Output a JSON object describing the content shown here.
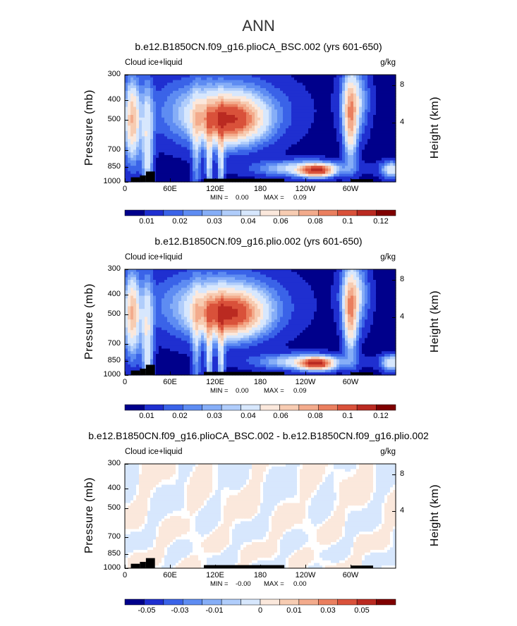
{
  "main_title": "ANN",
  "colors": {
    "levels_abs": [
      "#00008b",
      "#1f2fd0",
      "#3a63e8",
      "#5e8cf2",
      "#86aef7",
      "#b0cdfb",
      "#d7e7fd",
      "#fbe8dc",
      "#f7ccb2",
      "#f3ab8c",
      "#ea7f5f",
      "#d9513a",
      "#ba2a21",
      "#7f0000"
    ],
    "levels_diff": [
      "#00008b",
      "#1f2fd0",
      "#3a63e8",
      "#5e8cf2",
      "#86aef7",
      "#b0cdfb",
      "#d7e7fd",
      "#fbe8dc",
      "#f7ccb2",
      "#f3ab8c",
      "#ea7f5f",
      "#d9513a",
      "#ba2a21",
      "#7f0000"
    ],
    "land": "#000000"
  },
  "chart_data": [
    {
      "type": "heatmap",
      "title": "b.e12.B1850CN.f09_g16.plioCA_BSC.002 (yrs 601-650)",
      "variable_label": "Cloud ice+liquid",
      "units": "g/kg",
      "ylabel": "Pressure (mb)",
      "ylabel_right": "Height (km)",
      "x_ticks": [
        "0",
        "60E",
        "120E",
        "180",
        "120W",
        "60W"
      ],
      "x_tick_values": [
        0,
        60,
        120,
        180,
        240,
        300
      ],
      "xlim": [
        0,
        360
      ],
      "y_ticks": [
        "300",
        "400",
        "500",
        "700",
        "850",
        "1000"
      ],
      "y_tick_values": [
        300,
        400,
        500,
        700,
        850,
        1000
      ],
      "y_ticks_right": [
        "8",
        "4"
      ],
      "ylim": [
        300,
        1000
      ],
      "min_label": "MIN =",
      "min_value": "0.00",
      "max_label": "MAX =",
      "max_value": "0.09",
      "colorbar_labels": [
        "0.01",
        "0.02",
        "0.03",
        "0.04",
        "0.06",
        "0.08",
        "0.1",
        "0.12"
      ],
      "features": [
        {
          "lon": 8,
          "p": 500,
          "value": 0.06
        },
        {
          "lon": 140,
          "p": 500,
          "value": 0.08
        },
        {
          "lon": 255,
          "p": 870,
          "value": 0.08
        },
        {
          "lon": 300,
          "p": 500,
          "value": 0.05
        }
      ]
    },
    {
      "type": "heatmap",
      "title": "b.e12.B1850CN.f09_g16.plio.002 (yrs 601-650)",
      "variable_label": "Cloud ice+liquid",
      "units": "g/kg",
      "ylabel": "Pressure (mb)",
      "ylabel_right": "Height (km)",
      "x_ticks": [
        "0",
        "60E",
        "120E",
        "180",
        "120W",
        "60W"
      ],
      "x_tick_values": [
        0,
        60,
        120,
        180,
        240,
        300
      ],
      "xlim": [
        0,
        360
      ],
      "y_ticks": [
        "300",
        "400",
        "500",
        "700",
        "850",
        "1000"
      ],
      "y_tick_values": [
        300,
        400,
        500,
        700,
        850,
        1000
      ],
      "y_ticks_right": [
        "8",
        "4"
      ],
      "ylim": [
        300,
        1000
      ],
      "min_label": "MIN =",
      "min_value": "0.00",
      "max_label": "MAX =",
      "max_value": "0.09",
      "colorbar_labels": [
        "0.01",
        "0.02",
        "0.03",
        "0.04",
        "0.06",
        "0.08",
        "0.1",
        "0.12"
      ],
      "features": [
        {
          "lon": 8,
          "p": 500,
          "value": 0.06
        },
        {
          "lon": 140,
          "p": 500,
          "value": 0.08
        },
        {
          "lon": 255,
          "p": 870,
          "value": 0.08
        },
        {
          "lon": 300,
          "p": 500,
          "value": 0.05
        }
      ]
    },
    {
      "type": "heatmap",
      "title": "b.e12.B1850CN.f09_g16.plioCA_BSC.002 - b.e12.B1850CN.f09_g16.plio.002",
      "variable_label": "Cloud ice+liquid",
      "units": "g/kg",
      "ylabel": "Pressure (mb)",
      "ylabel_right": "Height (km)",
      "x_ticks": [
        "0",
        "60E",
        "120E",
        "180",
        "120W",
        "60W"
      ],
      "x_tick_values": [
        0,
        60,
        120,
        180,
        240,
        300
      ],
      "xlim": [
        0,
        360
      ],
      "y_ticks": [
        "300",
        "400",
        "500",
        "700",
        "850",
        "1000"
      ],
      "y_tick_values": [
        300,
        400,
        500,
        700,
        850,
        1000
      ],
      "y_ticks_right": [
        "8",
        "4"
      ],
      "ylim": [
        300,
        1000
      ],
      "min_label": "MIN =",
      "min_value": "-0.00",
      "max_label": "MAX =",
      "max_value": "0.00",
      "colorbar_labels": [
        "-0.05",
        "-0.03",
        "-0.01",
        "0",
        "0.01",
        "0.03",
        "0.05"
      ]
    }
  ]
}
